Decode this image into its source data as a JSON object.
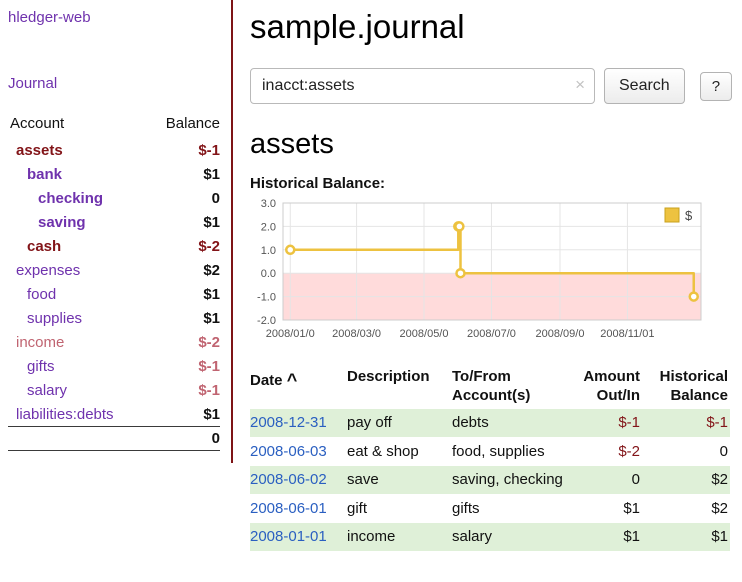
{
  "colors": {
    "link_purple": "#6f32ad",
    "maroon": "#821418",
    "maroon_border": "#7e1416",
    "rose": "#c06471",
    "date_blue": "#2a5fc1",
    "row_green": "#dff0d8",
    "chart_line": "#edc240"
  },
  "sidebar": {
    "app_title": "hledger-web",
    "journal_link": "Journal",
    "accounts": {
      "header": {
        "account": "Account",
        "balance": "Balance"
      },
      "rows": [
        {
          "name": "assets",
          "balance": "$-1",
          "indent": 0,
          "bold": true,
          "name_color": "maroon",
          "balance_color": "maroon"
        },
        {
          "name": "bank",
          "balance": "$1",
          "indent": 1,
          "bold": true,
          "name_color": "purple",
          "balance_color": "black"
        },
        {
          "name": "checking",
          "balance": "0",
          "indent": 2,
          "bold": true,
          "name_color": "purple",
          "balance_color": "black"
        },
        {
          "name": "saving",
          "balance": "$1",
          "indent": 2,
          "bold": true,
          "name_color": "purple",
          "balance_color": "black"
        },
        {
          "name": "cash",
          "balance": "$-2",
          "indent": 1,
          "bold": true,
          "name_color": "maroon",
          "balance_color": "maroon"
        },
        {
          "name": "expenses",
          "balance": "$2",
          "indent": 0,
          "bold": false,
          "name_color": "purple",
          "balance_color": "black"
        },
        {
          "name": "food",
          "balance": "$1",
          "indent": 1,
          "bold": false,
          "name_color": "purple",
          "balance_color": "black"
        },
        {
          "name": "supplies",
          "balance": "$1",
          "indent": 1,
          "bold": false,
          "name_color": "purple",
          "balance_color": "black"
        },
        {
          "name": "income",
          "balance": "$-2",
          "indent": 0,
          "bold": false,
          "name_color": "rose",
          "balance_color": "rose"
        },
        {
          "name": "gifts",
          "balance": "$-1",
          "indent": 1,
          "bold": false,
          "name_color": "purple",
          "balance_color": "rose"
        },
        {
          "name": "salary",
          "balance": "$-1",
          "indent": 1,
          "bold": false,
          "name_color": "purple",
          "balance_color": "rose"
        },
        {
          "name": "liabilities:debts",
          "balance": "$1",
          "indent": 0,
          "bold": false,
          "name_color": "purple",
          "balance_color": "black"
        }
      ],
      "total": "0"
    }
  },
  "main": {
    "title": "sample.journal",
    "search": {
      "value": "inacct:assets",
      "clear_icon": "×",
      "search_button": "Search",
      "help_button": "?"
    },
    "account_heading": "assets",
    "chart_title": "Historical Balance:"
  },
  "chart_data": {
    "type": "line",
    "step": true,
    "title": "Historical Balance:",
    "legend": "$",
    "legend_position": "top-right",
    "grid": true,
    "xlim": [
      "2008-01-01",
      "2008-12-31"
    ],
    "ylim": [
      -2.0,
      3.0
    ],
    "y_ticks": [
      3,
      2,
      1,
      0,
      -1,
      -2
    ],
    "x_ticks": [
      {
        "date": "2008-01-01",
        "label": "2008/01/0"
      },
      {
        "date": "2008-03-01",
        "label": "2008/03/0"
      },
      {
        "date": "2008-05-01",
        "label": "2008/05/0"
      },
      {
        "date": "2008-07-01",
        "label": "2008/07/0"
      },
      {
        "date": "2008-09-01",
        "label": "2008/09/0"
      },
      {
        "date": "2008-11-01",
        "label": "2008/11/01"
      }
    ],
    "negative_region_color": "#ffdbdb",
    "series": [
      {
        "name": "$",
        "color": "#edc240",
        "points": [
          {
            "date": "2008-01-01",
            "value": 1
          },
          {
            "date": "2008-06-01",
            "value": 2
          },
          {
            "date": "2008-06-02",
            "value": 2
          },
          {
            "date": "2008-06-03",
            "value": 0
          },
          {
            "date": "2008-12-31",
            "value": -1
          }
        ]
      }
    ]
  },
  "register": {
    "headers": {
      "date": "Date",
      "sort_icon": "^",
      "description": "Description",
      "account_line1": "To/From",
      "account_line2": "Account(s)",
      "amount_line1": "Amount",
      "amount_line2": "Out/In",
      "balance_line1": "Historical",
      "balance_line2": "Balance"
    },
    "rows": [
      {
        "date": "2008-12-31",
        "description": "pay off",
        "accounts": "debts",
        "amount": "$-1",
        "amount_color": "maroon",
        "balance": "$-1",
        "balance_color": "maroon",
        "shaded": true
      },
      {
        "date": "2008-06-03",
        "description": "eat & shop",
        "accounts": "food, supplies",
        "amount": "$-2",
        "amount_color": "maroon",
        "balance": "0",
        "balance_color": "black",
        "shaded": false
      },
      {
        "date": "2008-06-02",
        "description": "save",
        "accounts": "saving, checking",
        "amount": "0",
        "amount_color": "black",
        "balance": "$2",
        "balance_color": "black",
        "shaded": true
      },
      {
        "date": "2008-06-01",
        "description": "gift",
        "accounts": "gifts",
        "amount": "$1",
        "amount_color": "black",
        "balance": "$2",
        "balance_color": "black",
        "shaded": false
      },
      {
        "date": "2008-01-01",
        "description": "income",
        "accounts": "salary",
        "amount": "$1",
        "amount_color": "black",
        "balance": "$1",
        "balance_color": "black",
        "shaded": true
      }
    ]
  }
}
